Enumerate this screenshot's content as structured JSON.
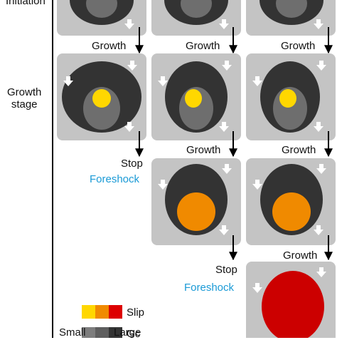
{
  "labels": {
    "initiation": "Initiation",
    "growth_stage": "Growth\nstage",
    "growth": "Growth",
    "stop": "Stop",
    "foreshock": "Foreshock"
  },
  "legend": {
    "slip_label": "Slip",
    "gc_label": "Gc",
    "small_label": "Small",
    "large_label": "Large",
    "slip_colors": [
      "#ffd700",
      "#f08a00",
      "#dd0000"
    ],
    "gc_colors": [
      "#7d7d7d",
      "#5e5e5e",
      "#333333"
    ]
  },
  "colors": {
    "panel": "#c4c4c4",
    "outer_ellipse": "#333333",
    "inner_ellipse": "#6e6e6e",
    "yellow_patch": "#ffd700",
    "orange_patch": "#f08a00",
    "red_patch": "#cc0000",
    "foreshock_text": "#1a9ad6"
  }
}
